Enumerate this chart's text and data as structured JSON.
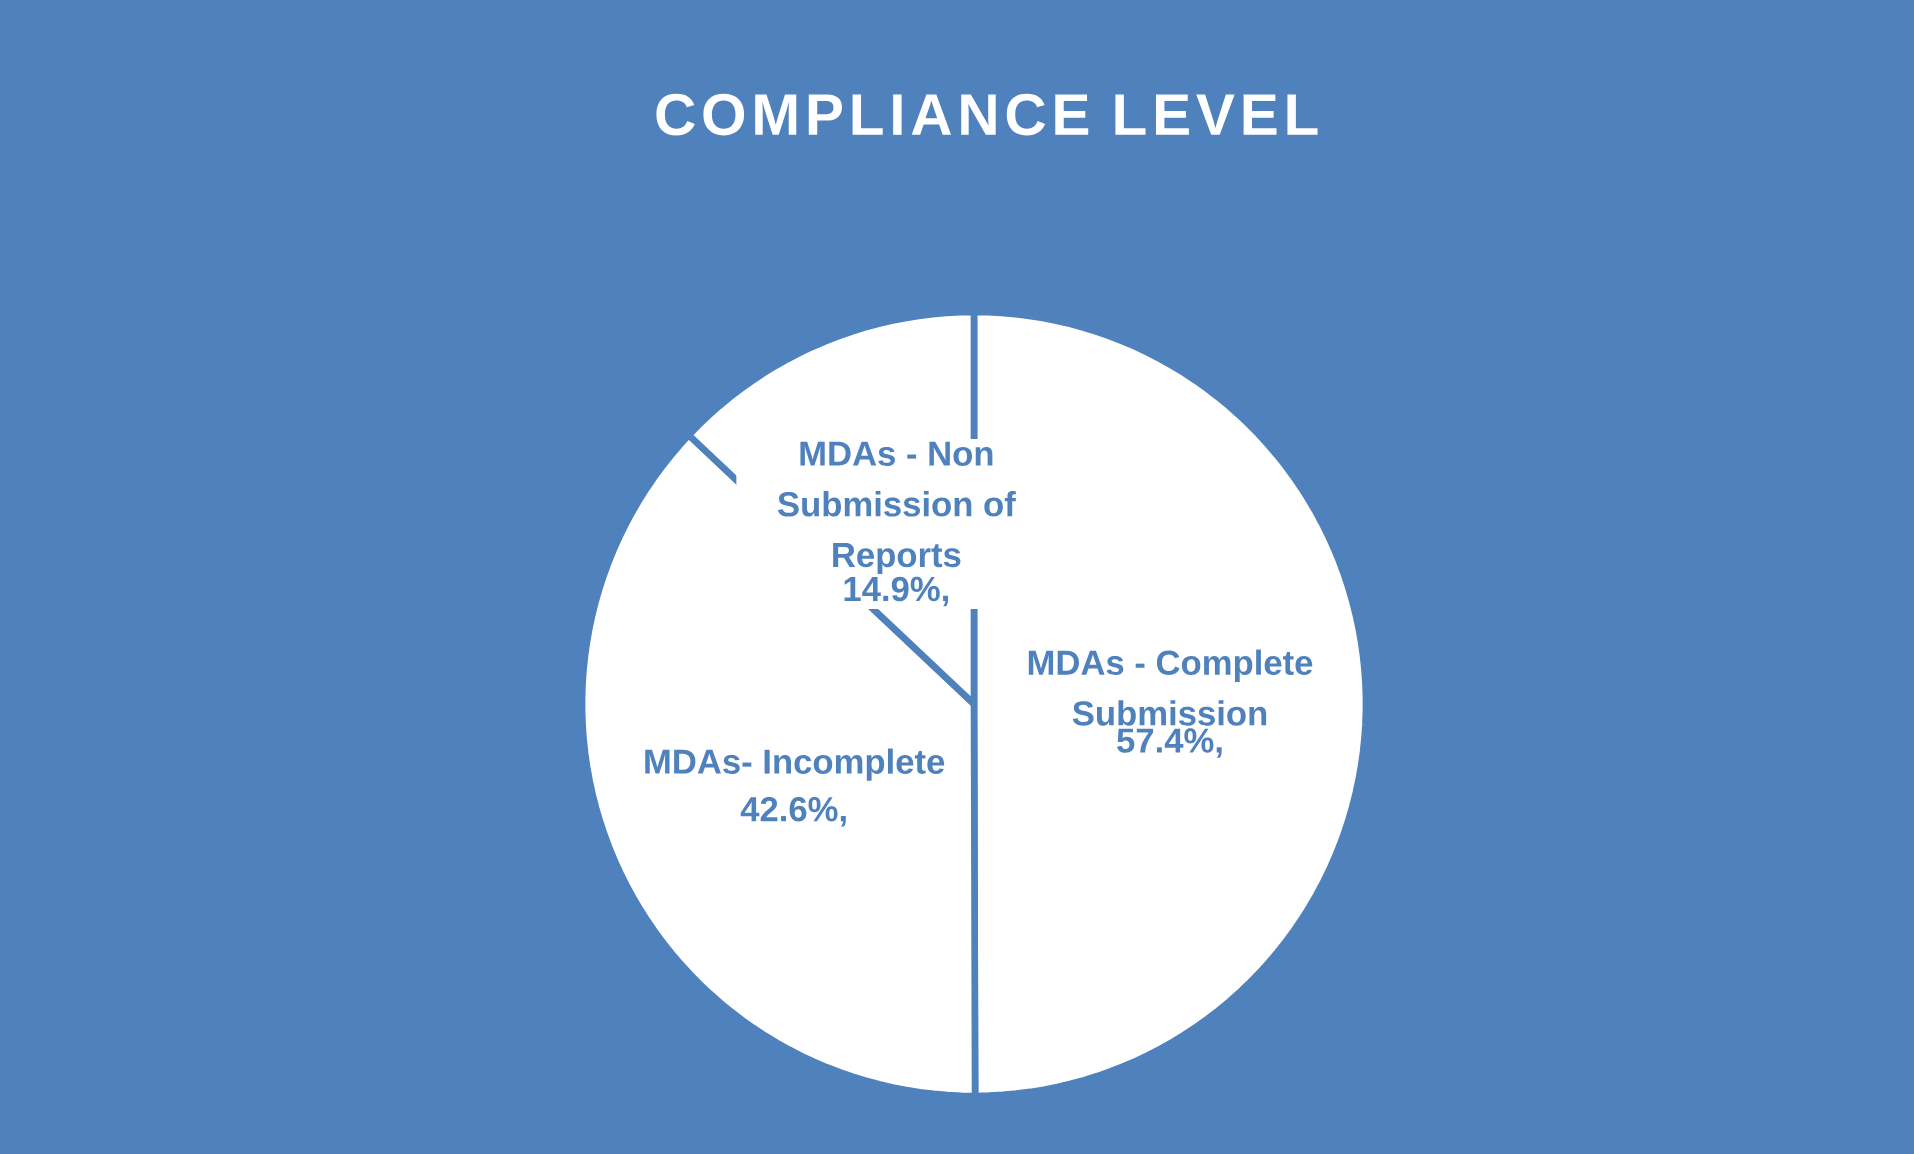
{
  "chart_data": {
    "type": "pie",
    "title": "COMPLIANCE LEVEL",
    "categories": [
      "MDAs - Complete Submission",
      "MDAs- Incomplete",
      "MDAs - Non Submission of Reports"
    ],
    "values": [
      57.4,
      42.6,
      14.9
    ],
    "colors": [
      "#ffffff",
      "#ffffff",
      "#ffffff"
    ],
    "value_labels": [
      "57.4%,",
      "42.6%,",
      "14.9%,"
    ]
  }
}
